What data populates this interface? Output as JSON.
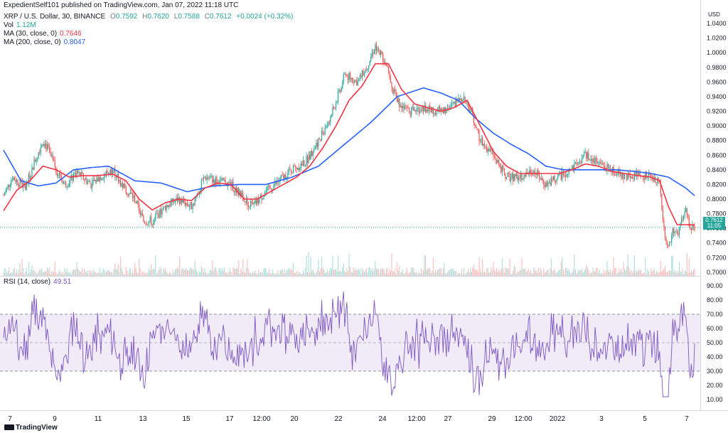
{
  "publisher": "ExpedientSelf101 published on TradingView.com, Jan 07, 2022 11:18 UTC",
  "symbol": {
    "title": "XRP / U.S. Dollar, 30, BINANCE",
    "o_label": "O",
    "o": "0.7592",
    "h_label": "H",
    "h": "0.7620",
    "l_label": "L",
    "l": "0.7588",
    "c_label": "C",
    "c": "0.7612",
    "change": "+0.0024 (+0.32%)"
  },
  "vol": {
    "label": "Vol",
    "value": "1.12M"
  },
  "ma30": {
    "label": "MA (30, close, 0)",
    "value": "0.7646",
    "color": "#f23645"
  },
  "ma200": {
    "label": "MA (200, close, 0)",
    "value": "0.8047",
    "color": "#2962ff"
  },
  "rsi": {
    "label": "RSI (14, close)",
    "value": "49.51",
    "color": "#7e57c2"
  },
  "currency": "USD",
  "last_price": {
    "value": "0.7612",
    "countdown": "11:05"
  },
  "footer": "TradingView",
  "colors": {
    "up": "#26a69a",
    "down": "#ef5350",
    "rsi_band": "#ede7f6"
  },
  "chart_data": [
    {
      "type": "candlestick",
      "title": "XRP / U.S. Dollar, 30, BINANCE",
      "x_ticks": [
        "7",
        "9",
        "11",
        "13",
        "15",
        "17",
        "12:00",
        "20",
        "22",
        "24",
        "12:00",
        "27",
        "29",
        "12:00",
        "2022",
        "3",
        "5",
        "7"
      ],
      "y_ticks": [
        "1.0400",
        "1.0200",
        "1.0000",
        "0.9800",
        "0.9600",
        "0.9400",
        "0.9200",
        "0.9000",
        "0.8800",
        "0.8600",
        "0.8400",
        "0.8200",
        "0.8000",
        "0.7800",
        "0.7600",
        "0.7400",
        "0.7200",
        "0.7000"
      ],
      "ylim": [
        0.695,
        1.043
      ],
      "price_anchors": [
        [
          0,
          0.805
        ],
        [
          2,
          0.83
        ],
        [
          5,
          0.815
        ],
        [
          7,
          0.85
        ],
        [
          9,
          0.88
        ],
        [
          10,
          0.87
        ],
        [
          12,
          0.84
        ],
        [
          14,
          0.82
        ],
        [
          17,
          0.835
        ],
        [
          20,
          0.82
        ],
        [
          22,
          0.83
        ],
        [
          25,
          0.84
        ],
        [
          27,
          0.82
        ],
        [
          30,
          0.8
        ],
        [
          32,
          0.77
        ],
        [
          34,
          0.77
        ],
        [
          37,
          0.79
        ],
        [
          40,
          0.8
        ],
        [
          43,
          0.79
        ],
        [
          46,
          0.83
        ],
        [
          49,
          0.825
        ],
        [
          52,
          0.82
        ],
        [
          55,
          0.8
        ],
        [
          57,
          0.79
        ],
        [
          60,
          0.81
        ],
        [
          63,
          0.825
        ],
        [
          66,
          0.84
        ],
        [
          69,
          0.85
        ],
        [
          72,
          0.88
        ],
        [
          75,
          0.915
        ],
        [
          78,
          0.97
        ],
        [
          81,
          0.96
        ],
        [
          83,
          0.98
        ],
        [
          85,
          1.01
        ],
        [
          87,
          0.99
        ],
        [
          89,
          0.95
        ],
        [
          91,
          0.925
        ],
        [
          93,
          0.92
        ],
        [
          96,
          0.925
        ],
        [
          99,
          0.92
        ],
        [
          102,
          0.925
        ],
        [
          105,
          0.94
        ],
        [
          107,
          0.92
        ],
        [
          109,
          0.88
        ],
        [
          112,
          0.86
        ],
        [
          115,
          0.83
        ],
        [
          118,
          0.83
        ],
        [
          121,
          0.84
        ],
        [
          124,
          0.82
        ],
        [
          127,
          0.83
        ],
        [
          130,
          0.84
        ],
        [
          133,
          0.86
        ],
        [
          136,
          0.85
        ],
        [
          139,
          0.84
        ],
        [
          142,
          0.83
        ],
        [
          145,
          0.835
        ],
        [
          148,
          0.83
        ],
        [
          150,
          0.82
        ],
        [
          151,
          0.76
        ],
        [
          152,
          0.73
        ],
        [
          153,
          0.76
        ],
        [
          154,
          0.75
        ],
        [
          155,
          0.77
        ],
        [
          156,
          0.785
        ],
        [
          157,
          0.76
        ],
        [
          158,
          0.76
        ]
      ],
      "ma30_anchors": [
        [
          0,
          0.784
        ],
        [
          3,
          0.812
        ],
        [
          6,
          0.825
        ],
        [
          9,
          0.845
        ],
        [
          12,
          0.84
        ],
        [
          15,
          0.83
        ],
        [
          18,
          0.832
        ],
        [
          21,
          0.832
        ],
        [
          25,
          0.834
        ],
        [
          28,
          0.825
        ],
        [
          31,
          0.8
        ],
        [
          34,
          0.785
        ],
        [
          37,
          0.795
        ],
        [
          40,
          0.8
        ],
        [
          43,
          0.798
        ],
        [
          46,
          0.815
        ],
        [
          49,
          0.822
        ],
        [
          52,
          0.82
        ],
        [
          55,
          0.8
        ],
        [
          58,
          0.8
        ],
        [
          61,
          0.81
        ],
        [
          64,
          0.82
        ],
        [
          67,
          0.83
        ],
        [
          70,
          0.845
        ],
        [
          73,
          0.87
        ],
        [
          76,
          0.9
        ],
        [
          79,
          0.935
        ],
        [
          82,
          0.955
        ],
        [
          85,
          0.985
        ],
        [
          88,
          0.985
        ],
        [
          91,
          0.95
        ],
        [
          94,
          0.93
        ],
        [
          97,
          0.925
        ],
        [
          100,
          0.92
        ],
        [
          103,
          0.925
        ],
        [
          106,
          0.935
        ],
        [
          109,
          0.9
        ],
        [
          112,
          0.865
        ],
        [
          115,
          0.845
        ],
        [
          118,
          0.835
        ],
        [
          121,
          0.835
        ],
        [
          124,
          0.835
        ],
        [
          127,
          0.835
        ],
        [
          130,
          0.84
        ],
        [
          133,
          0.848
        ],
        [
          136,
          0.845
        ],
        [
          139,
          0.838
        ],
        [
          142,
          0.835
        ],
        [
          145,
          0.832
        ],
        [
          148,
          0.83
        ],
        [
          150,
          0.825
        ],
        [
          152,
          0.79
        ],
        [
          154,
          0.765
        ],
        [
          156,
          0.765
        ],
        [
          158,
          0.7646
        ]
      ],
      "ma200_anchors": [
        [
          0,
          0.867
        ],
        [
          4,
          0.825
        ],
        [
          8,
          0.818
        ],
        [
          12,
          0.822
        ],
        [
          16,
          0.84
        ],
        [
          20,
          0.843
        ],
        [
          24,
          0.845
        ],
        [
          30,
          0.825
        ],
        [
          36,
          0.822
        ],
        [
          42,
          0.81
        ],
        [
          48,
          0.818
        ],
        [
          54,
          0.82
        ],
        [
          60,
          0.82
        ],
        [
          66,
          0.83
        ],
        [
          72,
          0.845
        ],
        [
          78,
          0.875
        ],
        [
          84,
          0.905
        ],
        [
          90,
          0.94
        ],
        [
          96,
          0.952
        ],
        [
          100,
          0.945
        ],
        [
          104,
          0.935
        ],
        [
          108,
          0.91
        ],
        [
          112,
          0.89
        ],
        [
          116,
          0.875
        ],
        [
          120,
          0.862
        ],
        [
          124,
          0.845
        ],
        [
          128,
          0.84
        ],
        [
          132,
          0.84
        ],
        [
          136,
          0.84
        ],
        [
          140,
          0.84
        ],
        [
          144,
          0.838
        ],
        [
          148,
          0.835
        ],
        [
          152,
          0.83
        ],
        [
          156,
          0.815
        ],
        [
          158,
          0.8047
        ]
      ]
    },
    {
      "type": "line",
      "title": "RSI (14, close)",
      "y_ticks": [
        "90.00",
        "80.00",
        "70.00",
        "60.00",
        "50.00",
        "40.00",
        "30.00",
        "20.00",
        "10.00"
      ],
      "ylim": [
        5,
        92
      ],
      "bands": [
        30,
        50,
        70
      ],
      "value": 49.51
    }
  ]
}
